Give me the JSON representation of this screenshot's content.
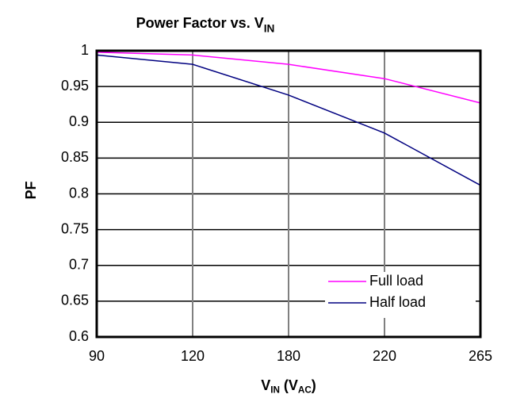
{
  "chart_data": {
    "type": "line",
    "title": [
      "Power Factor vs. V",
      "IN"
    ],
    "x_label": [
      "V",
      "IN",
      " (V",
      "AC",
      ")"
    ],
    "y_label": "PF",
    "categories": [
      "90",
      "120",
      "180",
      "220",
      "265"
    ],
    "series": [
      {
        "name": "Full load",
        "color": "#ff00ff",
        "values": [
          0.998,
          0.994,
          0.981,
          0.961,
          0.927
        ]
      },
      {
        "name": "Half load",
        "color": "#000080",
        "values": [
          0.994,
          0.981,
          0.938,
          0.885,
          0.812
        ]
      }
    ],
    "ylim": [
      0.6,
      1
    ],
    "yticks": [
      0.6,
      0.65,
      0.7,
      0.75,
      0.8,
      0.85,
      0.9,
      0.95,
      1
    ],
    "grid": true,
    "legend": "lower right"
  }
}
